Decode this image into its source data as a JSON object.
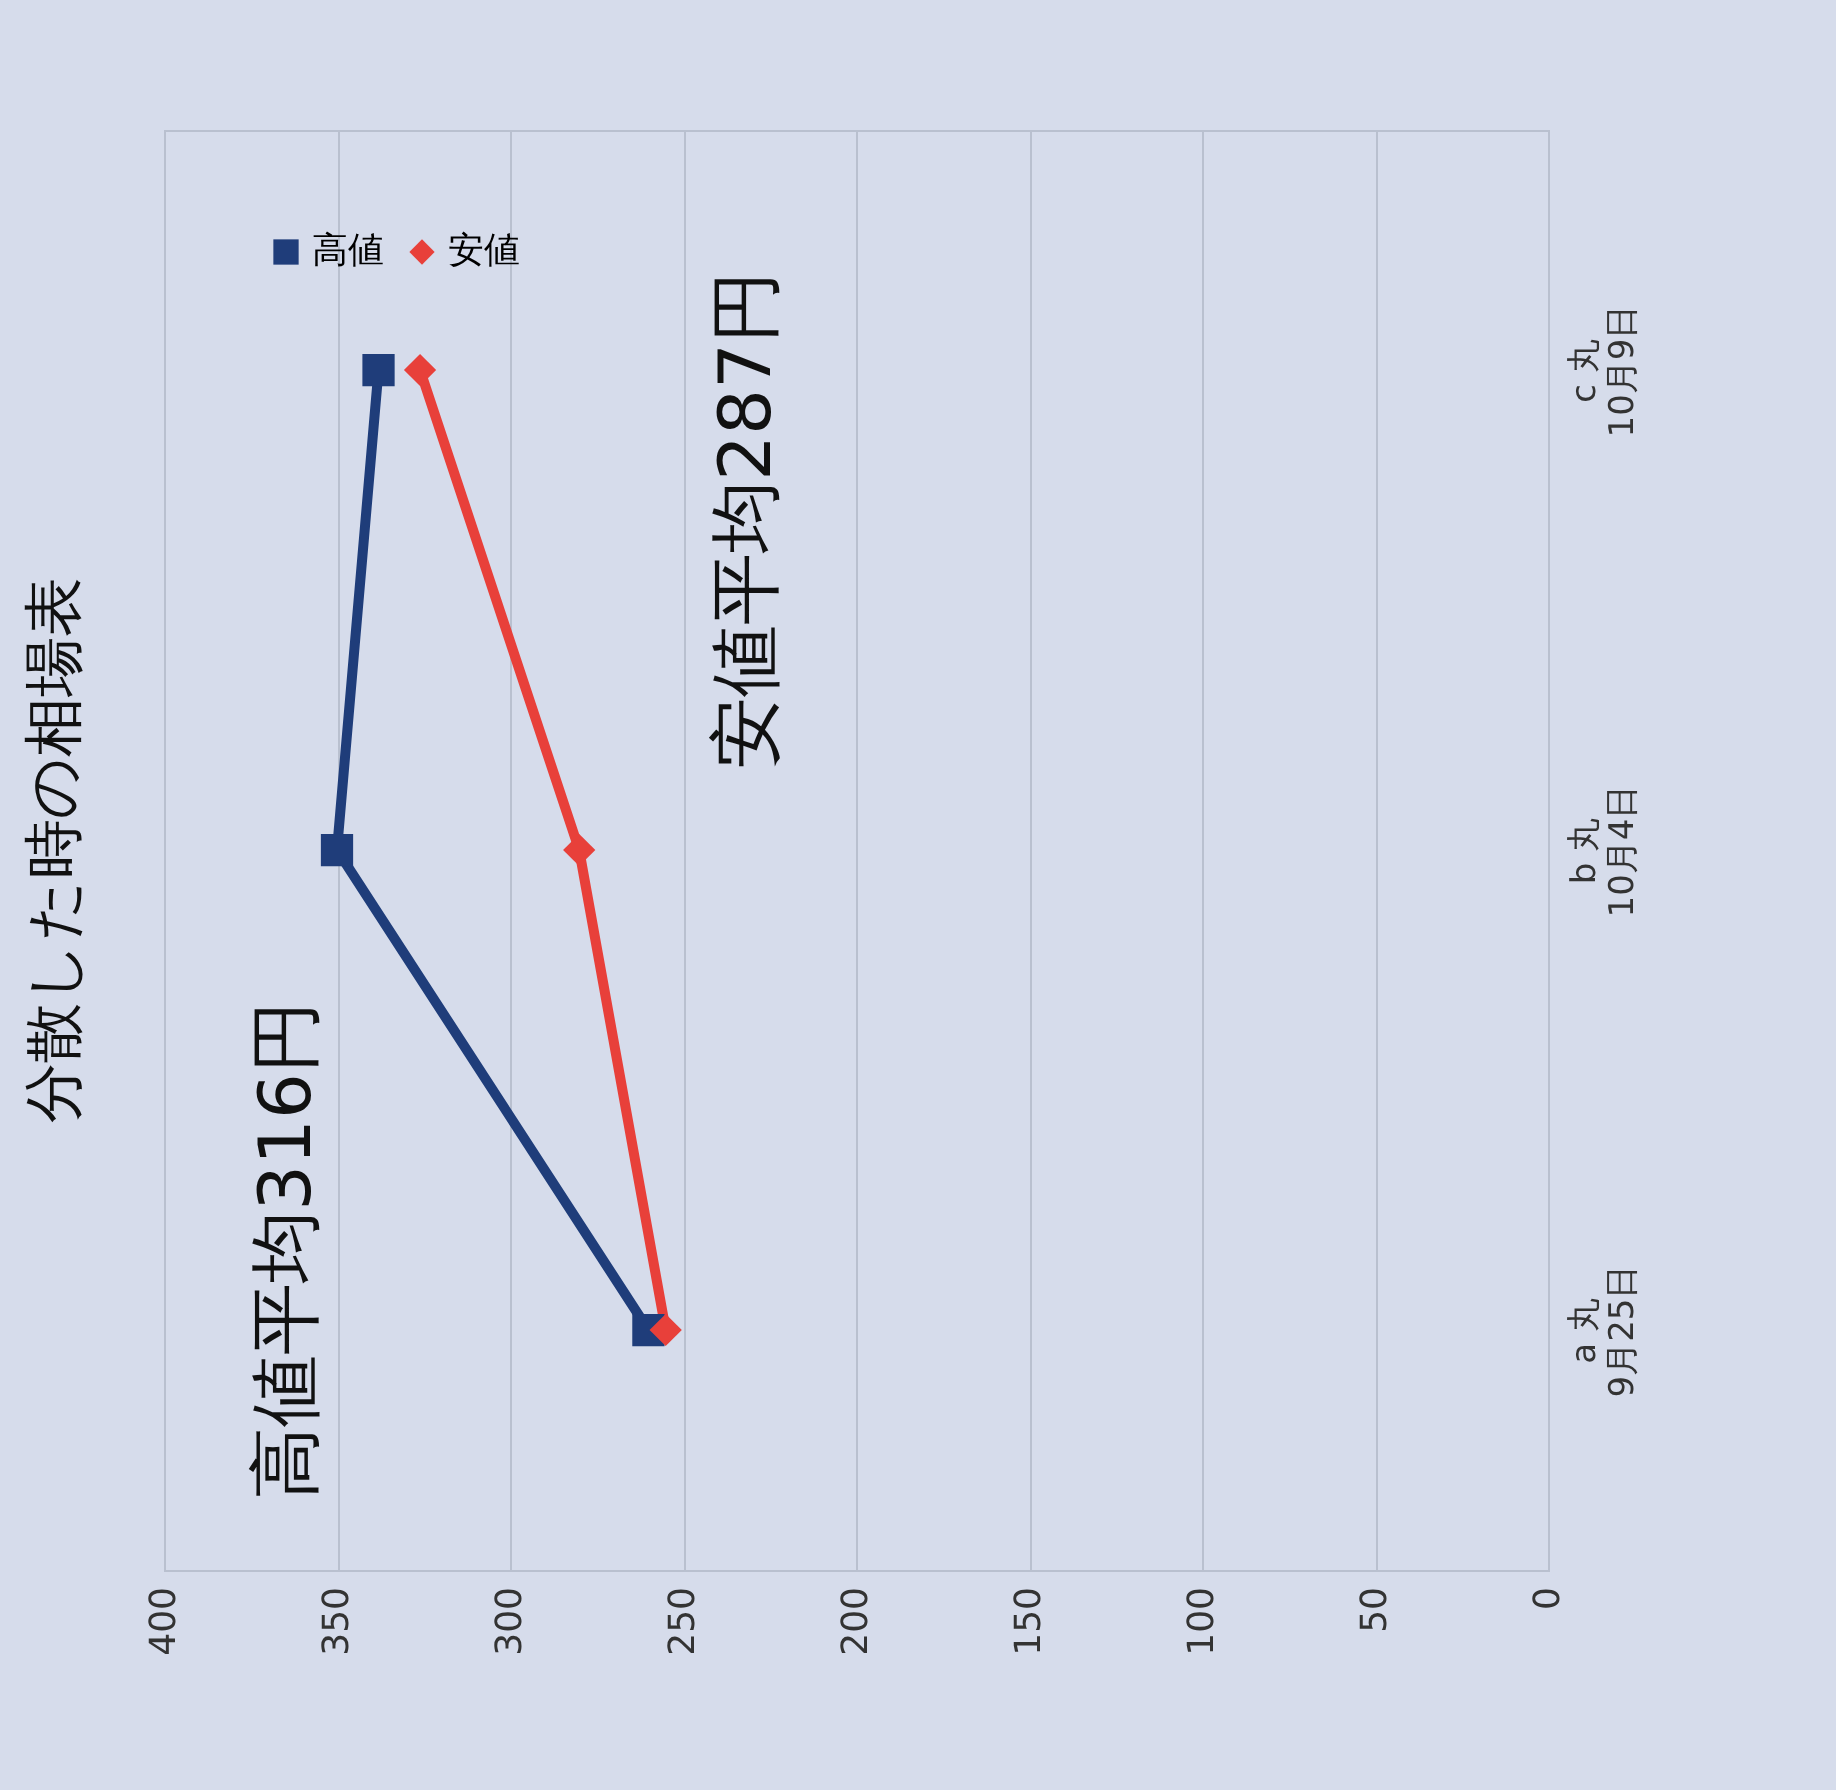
{
  "chart_data": {
    "type": "line",
    "orientation": "horizontal",
    "title": "分散した時の相場表",
    "categories": [
      "c 丸\n10月9日",
      "b 丸\n10月4日",
      "a 丸\n9月25日"
    ],
    "series": [
      {
        "name": "高値",
        "color": "#1f3d7a",
        "marker": "square",
        "values": [
          338,
          350,
          260
        ]
      },
      {
        "name": "安値",
        "color": "#e8403a",
        "marker": "diamond",
        "values": [
          326,
          280,
          255
        ]
      }
    ],
    "xlim": [
      400,
      0
    ],
    "xticks": [
      0,
      50,
      100,
      150,
      200,
      250,
      300,
      350,
      400
    ],
    "grid": "x",
    "legend": "top left",
    "annotations": [
      "高値平均316円",
      "安値平均287円"
    ]
  }
}
